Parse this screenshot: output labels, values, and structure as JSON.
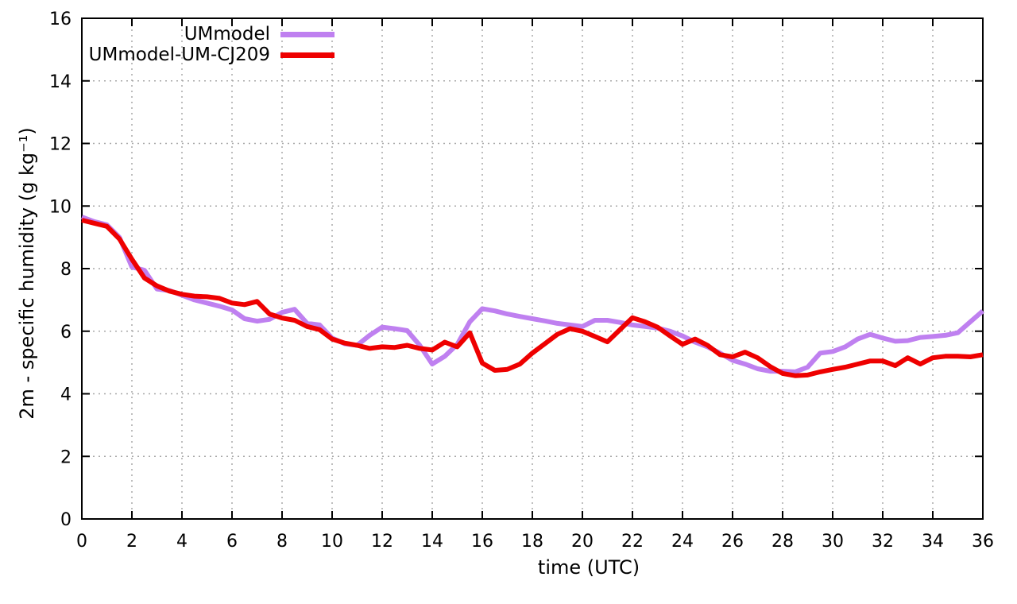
{
  "figure": {
    "background": "#ffffff",
    "border_color": "#000000",
    "grid_color": "#a8a8a8"
  },
  "chart_data": {
    "type": "line",
    "title": "",
    "xlabel": "time (UTC)",
    "ylabel": "2m - specific humidity (g kg⁻¹)",
    "xlim": [
      0,
      36
    ],
    "ylim": [
      0,
      16
    ],
    "xticks": [
      0,
      2,
      4,
      6,
      8,
      10,
      12,
      14,
      16,
      18,
      20,
      22,
      24,
      26,
      28,
      30,
      32,
      34,
      36
    ],
    "yticks": [
      0,
      2,
      4,
      6,
      8,
      10,
      12,
      14,
      16
    ],
    "grid": true,
    "legend_position": "top-left-inside",
    "x_start": 0,
    "x_step": 0.5,
    "series": [
      {
        "name": "UMmodel",
        "color": "#bf80f0",
        "values": [
          9.65,
          9.5,
          9.4,
          9.0,
          8.05,
          7.95,
          7.35,
          7.3,
          7.15,
          7.0,
          6.9,
          6.8,
          6.68,
          6.4,
          6.32,
          6.38,
          6.6,
          6.7,
          6.25,
          6.2,
          5.78,
          5.6,
          5.55,
          5.87,
          6.13,
          6.08,
          6.02,
          5.55,
          4.95,
          5.2,
          5.58,
          6.3,
          6.72,
          6.65,
          6.55,
          6.47,
          6.4,
          6.33,
          6.25,
          6.2,
          6.15,
          6.35,
          6.35,
          6.28,
          6.2,
          6.15,
          6.1,
          6.0,
          5.85,
          5.65,
          5.5,
          5.3,
          5.07,
          4.95,
          4.8,
          4.72,
          4.72,
          4.7,
          4.85,
          5.3,
          5.35,
          5.5,
          5.75,
          5.9,
          5.78,
          5.68,
          5.7,
          5.8,
          5.83,
          5.87,
          5.95,
          6.3,
          6.65
        ]
      },
      {
        "name": "UMmodel-UM-CJ209",
        "color": "#ee0000",
        "values": [
          9.55,
          9.45,
          9.35,
          8.95,
          8.3,
          7.7,
          7.45,
          7.28,
          7.18,
          7.12,
          7.1,
          7.05,
          6.9,
          6.85,
          6.95,
          6.55,
          6.42,
          6.35,
          6.15,
          6.05,
          5.75,
          5.62,
          5.55,
          5.45,
          5.5,
          5.48,
          5.55,
          5.45,
          5.4,
          5.65,
          5.5,
          5.95,
          4.98,
          4.75,
          4.78,
          4.95,
          5.3,
          5.6,
          5.9,
          6.08,
          6.0,
          5.83,
          5.66,
          6.05,
          6.43,
          6.3,
          6.13,
          5.85,
          5.58,
          5.75,
          5.55,
          5.25,
          5.18,
          5.33,
          5.15,
          4.87,
          4.65,
          4.58,
          4.6,
          4.7,
          4.78,
          4.85,
          4.95,
          5.05,
          5.05,
          4.9,
          5.15,
          4.95,
          5.15,
          5.2,
          5.2,
          5.18,
          5.25
        ]
      }
    ]
  }
}
